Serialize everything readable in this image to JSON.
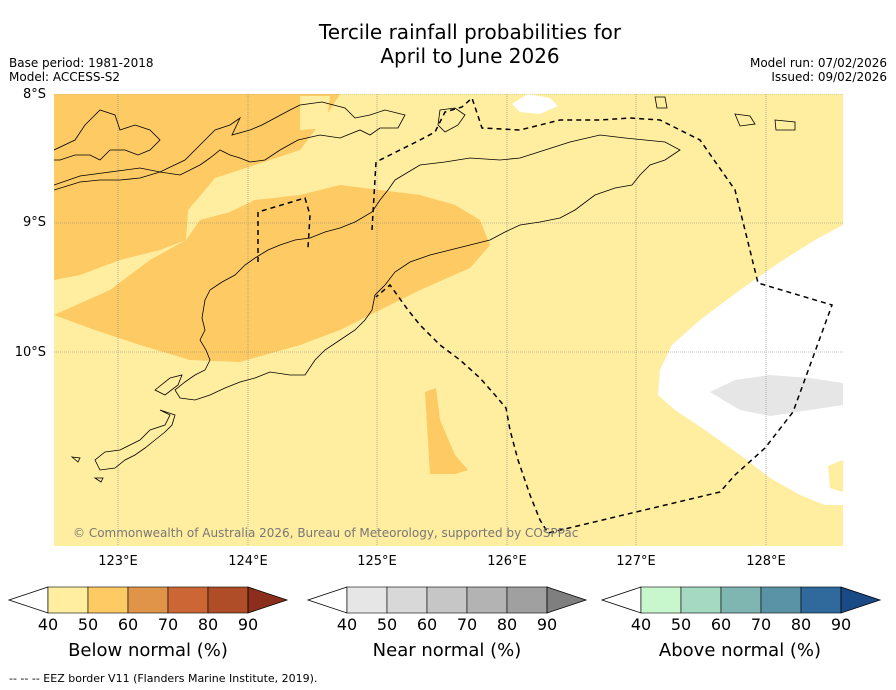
{
  "title": [
    "Tercile rainfall probabilities for",
    "April to June 2026"
  ],
  "base_period": "Base period: 1981-2018",
  "model": "Model: ACCESS-S2",
  "model_run": "Model run: 07/02/2026",
  "issued": "Issued: 09/02/2026",
  "lat_labels": [
    "8°S",
    "9°S",
    "10°S"
  ],
  "lon_labels": [
    "123°E",
    "124°E",
    "125°E",
    "126°E",
    "127°E",
    "128°E"
  ],
  "watermark": "© Commonwealth of Australia 2026, Bureau of Meteorology, supported by COSPPac",
  "colorbars": [
    {
      "title": "Below normal (%)",
      "ticks": [
        "40",
        "50",
        "60",
        "70",
        "80",
        "90"
      ],
      "colors": [
        "#ffeda0",
        "#fdca63",
        "#e0944a",
        "#cc6735",
        "#b04d29",
        "#8b2e1c"
      ]
    },
    {
      "title": "Near normal (%)",
      "ticks": [
        "40",
        "50",
        "60",
        "70",
        "80",
        "90"
      ],
      "colors": [
        "#e6e6e6",
        "#d8d8d8",
        "#c6c6c6",
        "#b3b3b3",
        "#a0a0a0",
        "#7f7f7f"
      ]
    },
    {
      "title": "Above normal (%)",
      "ticks": [
        "40",
        "50",
        "60",
        "70",
        "80",
        "90"
      ],
      "colors": [
        "#c9f7cd",
        "#a5d9c1",
        "#7fb6b2",
        "#5a93a6",
        "#306a9c",
        "#1a4a86"
      ]
    }
  ],
  "footnote": "--  --  -- EEZ border V11 (Flanders Marine Institute, 2019).",
  "colors": {
    "below_50": "#fdca63",
    "below_40": "#ffeda0",
    "near_40": "#e6e6e6",
    "none": "#ffffff"
  }
}
